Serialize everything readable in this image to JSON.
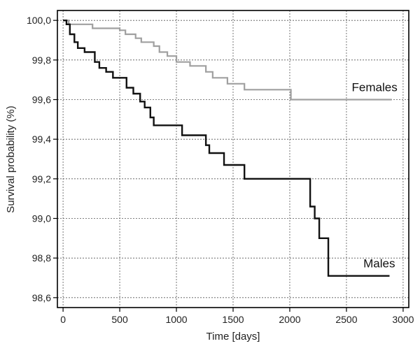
{
  "chart_data": {
    "type": "line",
    "step": true,
    "xlabel": "Time [days]",
    "ylabel": "Survival probability (%)",
    "xlim": [
      -50,
      3050
    ],
    "ylim": [
      98.55,
      100.05
    ],
    "xticks": [
      0,
      500,
      1000,
      1500,
      2000,
      2500,
      3000
    ],
    "xtick_labels": [
      "0",
      "500",
      "1000",
      "1500",
      "2000",
      "2500",
      "3000"
    ],
    "yticks": [
      98.6,
      98.8,
      99.0,
      99.2,
      99.4,
      99.6,
      99.8,
      100.0
    ],
    "ytick_labels": [
      "98,6",
      "98,8",
      "99,0",
      "99,2",
      "99,4",
      "99,6",
      "99,8",
      "100,0"
    ],
    "grid": true,
    "series": [
      {
        "name": "Females",
        "color": "#a0a0a0",
        "x": [
          0,
          50,
          260,
          500,
          550,
          640,
          690,
          800,
          850,
          920,
          1000,
          1120,
          1260,
          1320,
          1450,
          1600,
          2010,
          2900
        ],
        "y": [
          100.0,
          99.98,
          99.96,
          99.95,
          99.93,
          99.91,
          99.89,
          99.87,
          99.84,
          99.82,
          99.79,
          99.77,
          99.74,
          99.71,
          99.68,
          99.65,
          99.6,
          99.6
        ]
      },
      {
        "name": "Males",
        "color": "#111111",
        "x": [
          0,
          30,
          60,
          100,
          130,
          190,
          280,
          320,
          380,
          440,
          560,
          620,
          680,
          720,
          770,
          800,
          1050,
          1260,
          1290,
          1420,
          1600,
          2180,
          2220,
          2260,
          2340,
          2880
        ],
        "y": [
          100.0,
          99.98,
          99.93,
          99.89,
          99.86,
          99.84,
          99.79,
          99.76,
          99.74,
          99.71,
          99.66,
          99.63,
          99.59,
          99.56,
          99.51,
          99.47,
          99.42,
          99.37,
          99.33,
          99.27,
          99.2,
          99.06,
          99.0,
          98.9,
          98.71,
          98.71
        ]
      }
    ]
  }
}
